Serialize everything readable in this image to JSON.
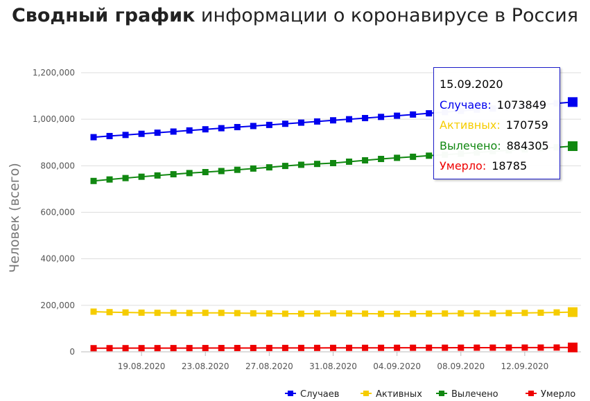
{
  "title_bold": "Сводный график",
  "title_rest": " информации о коронавирусе в Россия",
  "chart_data": {
    "type": "line",
    "ylabel": "Человек (всего)",
    "ylim": [
      0,
      1200000
    ],
    "yticks": [
      "0",
      "200,000",
      "400,000",
      "600,000",
      "800,000",
      "1,000,000",
      "1,200,000"
    ],
    "xticks": [
      "19.08.2020",
      "23.08.2020",
      "27.08.2020",
      "31.08.2020",
      "04.09.2020",
      "08.09.2020",
      "12.09.2020"
    ],
    "x": [
      "16.08.2020",
      "17.08.2020",
      "18.08.2020",
      "19.08.2020",
      "20.08.2020",
      "21.08.2020",
      "22.08.2020",
      "23.08.2020",
      "24.08.2020",
      "25.08.2020",
      "26.08.2020",
      "27.08.2020",
      "28.08.2020",
      "29.08.2020",
      "30.08.2020",
      "31.08.2020",
      "01.09.2020",
      "02.09.2020",
      "03.09.2020",
      "04.09.2020",
      "05.09.2020",
      "06.09.2020",
      "07.09.2020",
      "08.09.2020",
      "09.09.2020",
      "10.09.2020",
      "11.09.2020",
      "12.09.2020",
      "13.09.2020",
      "14.09.2020",
      "15.09.2020"
    ],
    "grid": true,
    "legend_position": "bottom-right",
    "series": [
      {
        "name": "Случаев",
        "color": "#0000ee",
        "values": [
          922853,
          927745,
          932493,
          937321,
          942106,
          946976,
          951897,
          956749,
          961493,
          966189,
          970865,
          975576,
          980405,
          985346,
          990326,
          995319,
          1000048,
          1005000,
          1009995,
          1015105,
          1020310,
          1025505,
          1030690,
          1035789,
          1041007,
          1046370,
          1051874,
          1057362,
          1062811,
          1068320,
          1073849
        ]
      },
      {
        "name": "Активных",
        "color": "#f5cc00",
        "values": [
          172800,
          170600,
          169200,
          168400,
          167700,
          167400,
          167000,
          167600,
          167400,
          166400,
          165600,
          165000,
          163900,
          163800,
          164700,
          165500,
          164900,
          164200,
          163300,
          163400,
          163800,
          164100,
          164700,
          165200,
          165100,
          165400,
          166500,
          167300,
          168100,
          169400,
          170759
        ]
      },
      {
        "name": "Вылечено",
        "color": "#118811",
        "values": [
          734600,
          741000,
          747000,
          752800,
          758300,
          763500,
          768500,
          772700,
          777200,
          782600,
          788000,
          793200,
          799200,
          804200,
          807900,
          811400,
          817500,
          823300,
          829200,
          834100,
          838600,
          843300,
          847600,
          852000,
          857300,
          862200,
          866500,
          870700,
          875100,
          879300,
          884305
        ]
      },
      {
        "name": "Умерло",
        "color": "#ee0000",
        "values": [
          15653,
          15740,
          15826,
          15917,
          16004,
          16089,
          16174,
          16248,
          16300,
          16399,
          16496,
          16598,
          16698,
          16792,
          16876,
          16963,
          17059,
          17161,
          17255,
          17354,
          17459,
          17552,
          17629,
          17725,
          17840,
          17944,
          18034,
          18128,
          18188,
          18442,
          18785
        ]
      }
    ]
  },
  "tooltip": {
    "date": "15.09.2020",
    "rows": [
      {
        "label": "Случаев:",
        "value": "1073849",
        "color": "#0000ee"
      },
      {
        "label": "Активных:",
        "value": "170759",
        "color": "#f5cc00"
      },
      {
        "label": "Вылечено:",
        "value": "884305",
        "color": "#118811"
      },
      {
        "label": "Умерло:",
        "value": "18785",
        "color": "#ee0000"
      }
    ]
  }
}
